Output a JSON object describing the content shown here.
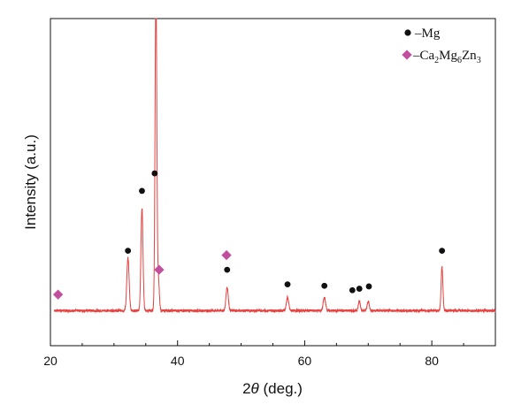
{
  "chart_data": {
    "type": "line",
    "xlabel_prefix": "2",
    "xlabel_symbol": "θ",
    "xlabel_suffix": " (deg.)",
    "ylabel": "Intensity (a.u.)",
    "xlim": [
      20,
      90
    ],
    "ylim": [
      -12,
      100
    ],
    "xticks": [
      20,
      40,
      60,
      80
    ],
    "y_ticks_visible": false,
    "grid": false,
    "legend_position": "top-right",
    "series": [
      {
        "color": "#e8413f",
        "baseline": 0,
        "peaks": [
          {
            "x": 32.2,
            "y": 18,
            "w": 0.18
          },
          {
            "x": 34.4,
            "y": 35,
            "w": 0.16
          },
          {
            "x": 36.6,
            "y": 110,
            "w": 0.14
          },
          {
            "x": 37.0,
            "y": 10,
            "w": 0.14
          },
          {
            "x": 47.8,
            "y": 8,
            "w": 0.18
          },
          {
            "x": 57.3,
            "y": 4.5,
            "w": 0.18
          },
          {
            "x": 63.1,
            "y": 4.5,
            "w": 0.18
          },
          {
            "x": 68.6,
            "y": 3.2,
            "w": 0.16
          },
          {
            "x": 70.0,
            "y": 3.2,
            "w": 0.16
          },
          {
            "x": 81.6,
            "y": 15,
            "w": 0.14
          }
        ]
      }
    ],
    "markers": {
      "mg": {
        "legend_symbol": "–Mg",
        "color": "#111111",
        "points": [
          {
            "x": 32.2,
            "y": 20.5
          },
          {
            "x": 34.4,
            "y": 41
          },
          {
            "x": 36.4,
            "y": 47
          },
          {
            "x": 47.8,
            "y": 14
          },
          {
            "x": 57.3,
            "y": 9
          },
          {
            "x": 63.1,
            "y": 8.5
          },
          {
            "x": 67.5,
            "y": 7
          },
          {
            "x": 68.6,
            "y": 7.5
          },
          {
            "x": 70.1,
            "y": 8.3
          },
          {
            "x": 81.6,
            "y": 20.5
          }
        ]
      },
      "ca2mg6zn3": {
        "legend_prefix": "–Ca",
        "legend_parts": [
          "2",
          "Mg",
          "6",
          "Zn",
          "3"
        ],
        "color": "#c14f9e",
        "points": [
          {
            "x": 21.2,
            "y": 5.5
          },
          {
            "x": 37.1,
            "y": 14
          },
          {
            "x": 47.7,
            "y": 19
          }
        ]
      }
    }
  }
}
